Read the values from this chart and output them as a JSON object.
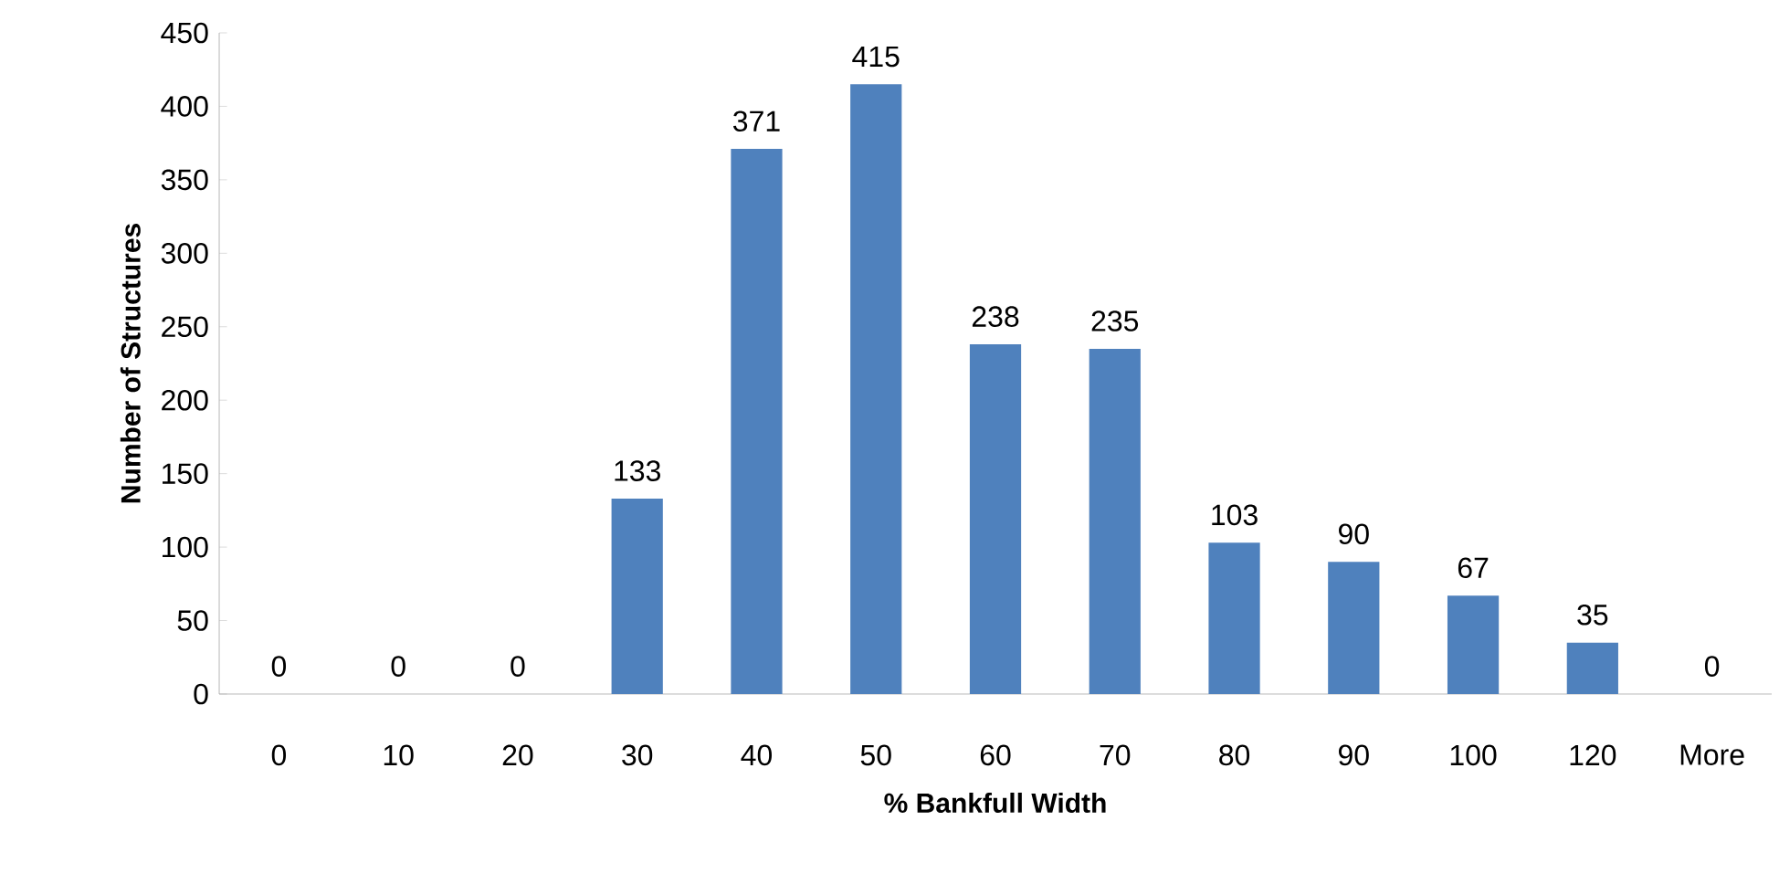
{
  "chart_data": {
    "type": "bar",
    "xlabel": "% Bankfull Width",
    "ylabel": "Number of Structures",
    "categories": [
      "0",
      "10",
      "20",
      "30",
      "40",
      "50",
      "60",
      "70",
      "80",
      "90",
      "100",
      "120",
      "More"
    ],
    "values": [
      0,
      0,
      0,
      133,
      371,
      415,
      238,
      235,
      103,
      90,
      67,
      35,
      0
    ],
    "color": "#4f81bd",
    "ylim": [
      0,
      450
    ],
    "yticks": [
      0,
      50,
      100,
      150,
      200,
      250,
      300,
      350,
      400,
      450
    ],
    "data_labels": true,
    "grid": false
  }
}
